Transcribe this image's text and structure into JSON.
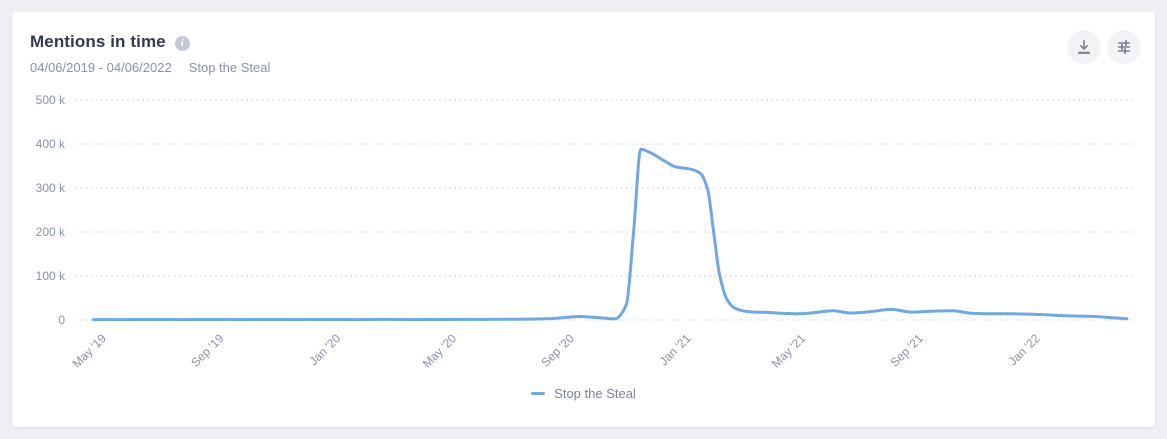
{
  "header": {
    "title": "Mentions in time",
    "date_range": "04/06/2019 - 04/06/2022",
    "query": "Stop the Steal",
    "actions": [
      {
        "name": "download",
        "icon": "download-icon"
      },
      {
        "name": "chart-settings",
        "icon": "sliders-icon"
      }
    ]
  },
  "chart_data": {
    "type": "line",
    "title": "Mentions in time",
    "x_unit": "months since 04/06/2019",
    "x_domain": [
      0,
      36
    ],
    "y_unit": "mentions (thousands)",
    "y_domain": [
      0,
      500
    ],
    "grid": "dotted-horizontal",
    "legend_position": "bottom-center",
    "grid_color": "#d6dae2",
    "axis_label_color": "#8b93a6",
    "y_ticks": [
      {
        "value": 0,
        "label": "0"
      },
      {
        "value": 100,
        "label": "100 k"
      },
      {
        "value": 200,
        "label": "200 k"
      },
      {
        "value": 300,
        "label": "300 k"
      },
      {
        "value": 400,
        "label": "400 k"
      },
      {
        "value": 500,
        "label": "500 k"
      }
    ],
    "x_ticks": [
      {
        "pos": 0.82,
        "label": "May '19"
      },
      {
        "pos": 4.86,
        "label": "Sep '19"
      },
      {
        "pos": 8.87,
        "label": "Jan '20"
      },
      {
        "pos": 12.85,
        "label": "May '20"
      },
      {
        "pos": 16.89,
        "label": "Sep '20"
      },
      {
        "pos": 20.9,
        "label": "Jan '21"
      },
      {
        "pos": 24.84,
        "label": "May '21"
      },
      {
        "pos": 28.88,
        "label": "Sep '21"
      },
      {
        "pos": 32.89,
        "label": "Jan '22"
      }
    ],
    "series": [
      {
        "name": "Stop the Steal",
        "color": "#6fa8e8",
        "points_format": "[month_offset_from_04/06/2019, mentions_in_thousands]",
        "points": [
          [
            0.5,
            1
          ],
          [
            1.5,
            1
          ],
          [
            2.5,
            1.2
          ],
          [
            3.5,
            1
          ],
          [
            4.5,
            1.2
          ],
          [
            5.5,
            1
          ],
          [
            6.5,
            1.2
          ],
          [
            7.5,
            1
          ],
          [
            8.5,
            1.2
          ],
          [
            9.5,
            1
          ],
          [
            10.5,
            1.3
          ],
          [
            11.5,
            1
          ],
          [
            12.5,
            1.2
          ],
          [
            13.5,
            1.4
          ],
          [
            14.5,
            1.6
          ],
          [
            15.5,
            2
          ],
          [
            16.3,
            3.5
          ],
          [
            17.2,
            8
          ],
          [
            17.9,
            5
          ],
          [
            18.4,
            2.5
          ],
          [
            18.8,
            35
          ],
          [
            19.05,
            200
          ],
          [
            19.3,
            388
          ],
          [
            19.6,
            381
          ],
          [
            20.1,
            362
          ],
          [
            20.5,
            348
          ],
          [
            21.0,
            343
          ],
          [
            21.35,
            333
          ],
          [
            21.6,
            295
          ],
          [
            21.8,
            200
          ],
          [
            22.0,
            105
          ],
          [
            22.25,
            48
          ],
          [
            22.5,
            28
          ],
          [
            22.8,
            21
          ],
          [
            23.2,
            18
          ],
          [
            23.7,
            17
          ],
          [
            24.2,
            15
          ],
          [
            24.7,
            14
          ],
          [
            25.3,
            17
          ],
          [
            25.9,
            21
          ],
          [
            26.5,
            16
          ],
          [
            27.2,
            19
          ],
          [
            27.9,
            24
          ],
          [
            28.6,
            18
          ],
          [
            29.3,
            20
          ],
          [
            30.0,
            21
          ],
          [
            30.7,
            15
          ],
          [
            31.4,
            14
          ],
          [
            32.1,
            14
          ],
          [
            32.8,
            13
          ],
          [
            33.5,
            11
          ],
          [
            34.2,
            9
          ],
          [
            34.9,
            8
          ],
          [
            35.5,
            5
          ],
          [
            36.0,
            3
          ]
        ]
      }
    ]
  },
  "legend": {
    "items": [
      {
        "label": "Stop the Steal",
        "color": "#6fa8e8"
      }
    ]
  }
}
